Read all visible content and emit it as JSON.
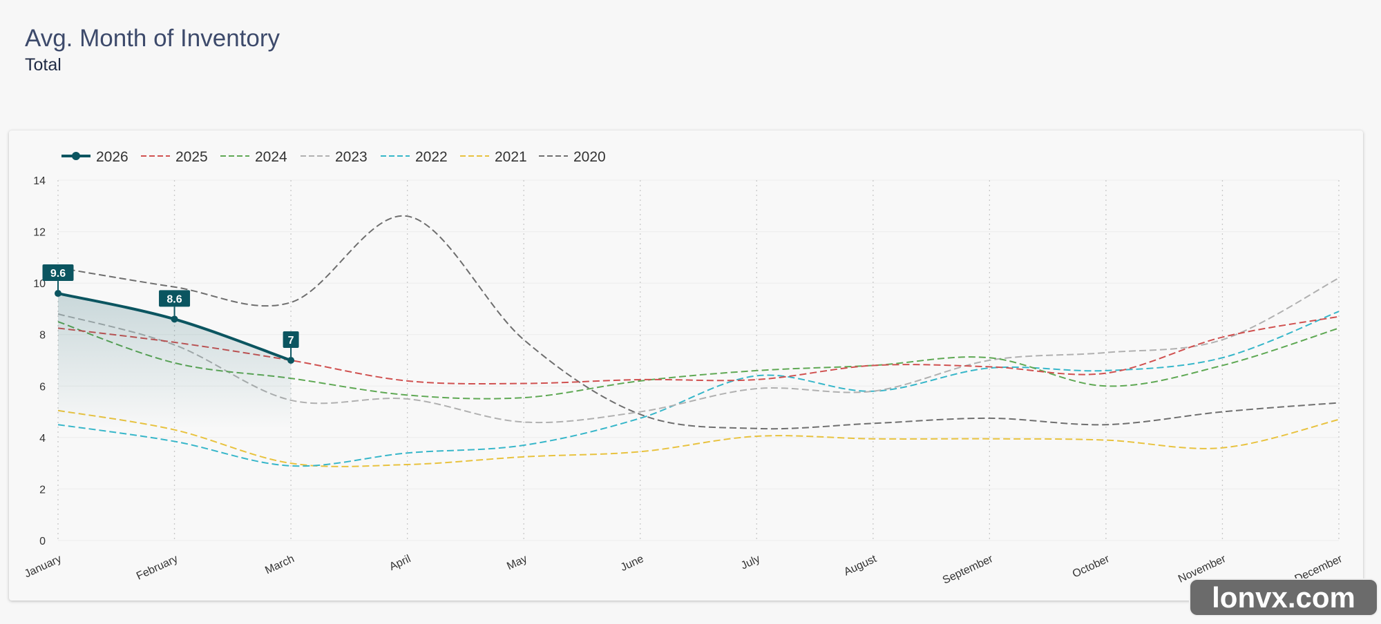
{
  "title": "Avg. Month of Inventory",
  "subtitle": "Total",
  "watermark": "lonvx.com",
  "chart_data": {
    "type": "line",
    "categories": [
      "January",
      "February",
      "March",
      "April",
      "May",
      "June",
      "July",
      "August",
      "September",
      "October",
      "November",
      "December"
    ],
    "ylim": [
      0,
      14
    ],
    "yticks": [
      0,
      2,
      4,
      6,
      8,
      10,
      12,
      14
    ],
    "grid": "x",
    "legend": "top-left",
    "series": [
      {
        "name": "2026",
        "color": "#0b5560",
        "dashed": false,
        "values": [
          9.6,
          8.6,
          7,
          null,
          null,
          null,
          null,
          null,
          null,
          null,
          null,
          null
        ]
      },
      {
        "name": "2025",
        "color": "#d0504f",
        "dashed": true,
        "values": [
          8.25,
          7.7,
          7.0,
          6.2,
          6.1,
          6.25,
          6.25,
          6.8,
          6.75,
          6.5,
          7.9,
          8.7
        ]
      },
      {
        "name": "2024",
        "color": "#5ea853",
        "dashed": true,
        "values": [
          8.5,
          6.9,
          6.3,
          5.65,
          5.55,
          6.2,
          6.6,
          6.8,
          7.1,
          6.0,
          6.8,
          8.25
        ]
      },
      {
        "name": "2023",
        "color": "#b0b0b0",
        "dashed": true,
        "values": [
          8.8,
          7.6,
          5.45,
          5.5,
          4.6,
          5.0,
          5.9,
          5.8,
          7.0,
          7.3,
          7.8,
          10.2
        ]
      },
      {
        "name": "2022",
        "color": "#36b6c9",
        "dashed": true,
        "values": [
          4.5,
          3.85,
          2.9,
          3.4,
          3.7,
          4.75,
          6.4,
          5.8,
          6.7,
          6.6,
          7.1,
          8.9
        ]
      },
      {
        "name": "2021",
        "color": "#e8c23e",
        "dashed": true,
        "values": [
          5.05,
          4.3,
          3.0,
          2.95,
          3.25,
          3.45,
          4.05,
          3.95,
          3.95,
          3.9,
          3.6,
          4.7
        ]
      },
      {
        "name": "2020",
        "color": "#6e6e6e",
        "dashed": true,
        "values": [
          10.6,
          9.85,
          9.25,
          12.6,
          7.8,
          4.9,
          4.35,
          4.55,
          4.75,
          4.5,
          5.0,
          5.35
        ]
      }
    ]
  }
}
